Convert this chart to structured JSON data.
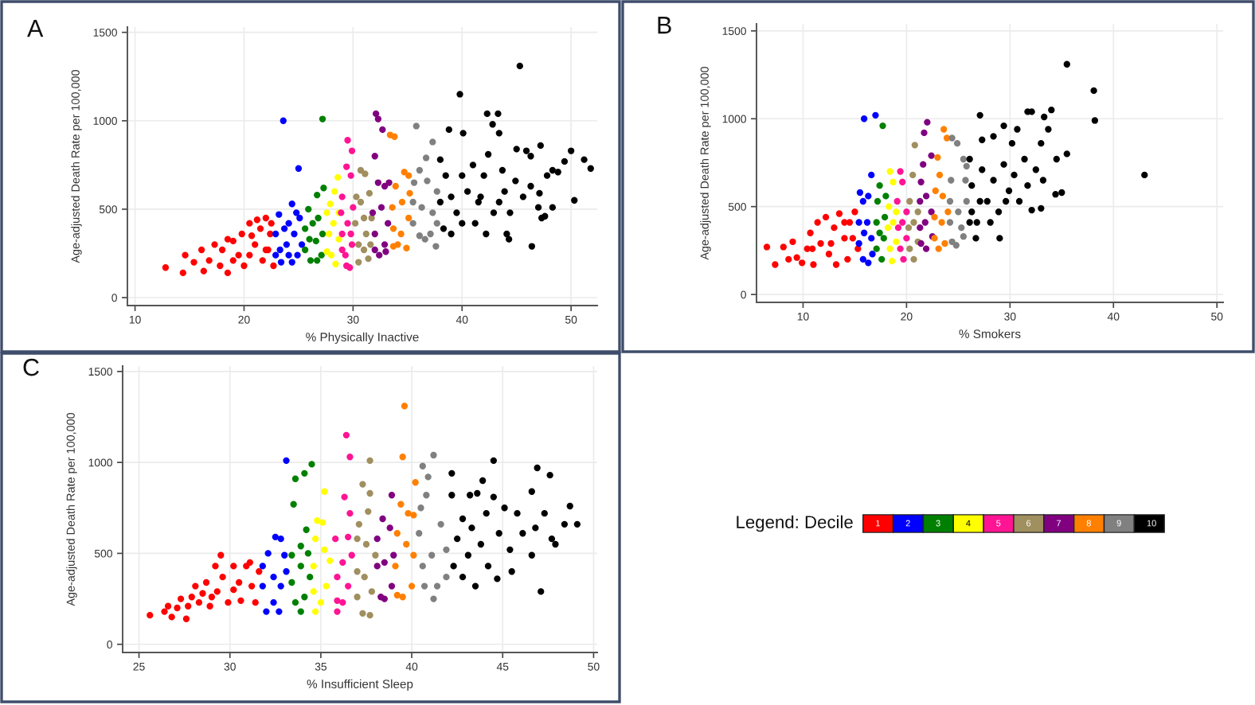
{
  "chart_data": [
    {
      "type": "scatter",
      "title": "A",
      "xlabel": "% Physically Inactive",
      "ylabel": "Age-adjusted Death Rate per 100,000",
      "xlim": [
        9.3,
        52.4
      ],
      "ylim": [
        -45,
        1530
      ],
      "xticks": [
        10,
        20,
        30,
        40,
        50
      ],
      "yticks": [
        0,
        500,
        1000,
        1500
      ],
      "grid": true,
      "marker": "circle",
      "series": [
        {
          "color": "#ff0000",
          "x": [
            12.8,
            14.4,
            14.6,
            15.4,
            16.1,
            16.3,
            16.8,
            17.3,
            17.8,
            18.0,
            18.5,
            19.0,
            19.5,
            19.8,
            20.0,
            20.5,
            21.0,
            21.5,
            21.7,
            22.0,
            22.2,
            22.4,
            22.7,
            20.5,
            21.2,
            19.0,
            20.7,
            22.0,
            18.5,
            22.5
          ],
          "values": [
            170,
            140,
            240,
            200,
            270,
            150,
            210,
            300,
            180,
            270,
            140,
            320,
            240,
            360,
            180,
            420,
            300,
            390,
            210,
            450,
            270,
            360,
            180,
            240,
            440,
            210,
            350,
            270,
            330,
            420
          ]
        },
        {
          "color": "#0000ff",
          "x": [
            23.6,
            25.0,
            24.4,
            23.2,
            22.9,
            22.9,
            23.4,
            23.9,
            24.1,
            24.6,
            24.9,
            25.1,
            24.4,
            23.7,
            25.3,
            24.1,
            23.3,
            24.8
          ],
          "values": [
            1000,
            730,
            530,
            470,
            360,
            240,
            200,
            300,
            420,
            360,
            240,
            450,
            200,
            390,
            300,
            240,
            270,
            480
          ]
        },
        {
          "color": "#008000",
          "x": [
            27.2,
            27.3,
            26.7,
            25.9,
            25.6,
            25.6,
            26.1,
            26.6,
            26.8,
            27.1,
            26.3,
            27.2,
            26.0,
            26.7
          ],
          "values": [
            1010,
            620,
            580,
            500,
            390,
            270,
            210,
            320,
            450,
            240,
            420,
            360,
            330,
            210
          ]
        },
        {
          "color": "#ffff00",
          "x": [
            27.6,
            27.8,
            27.6,
            28.0,
            28.3,
            28.6,
            28.4,
            28.2,
            28.7,
            27.9,
            28.7
          ],
          "values": [
            480,
            360,
            260,
            240,
            600,
            680,
            190,
            420,
            330,
            530,
            480
          ]
        },
        {
          "color": "#ff1493",
          "x": [
            29.5,
            29.9,
            29.4,
            29.8,
            29.0,
            28.9,
            29.0,
            29.0,
            29.4,
            29.7,
            29.5,
            29.9,
            30.0,
            29.3,
            29.8
          ],
          "values": [
            890,
            830,
            740,
            690,
            570,
            480,
            360,
            270,
            180,
            170,
            420,
            300,
            510,
            240,
            360
          ]
        },
        {
          "color": "#a08f5f",
          "x": [
            30.7,
            31.1,
            30.3,
            30.7,
            31.5,
            30.2,
            30.5,
            30.5,
            31.4,
            31.2,
            31.7,
            31.0,
            31.6,
            31.0
          ],
          "values": [
            720,
            700,
            570,
            540,
            590,
            420,
            300,
            200,
            220,
            360,
            450,
            270,
            300,
            450
          ]
        },
        {
          "color": "#800080",
          "x": [
            32.1,
            32.3,
            32.7,
            32.0,
            32.3,
            32.9,
            33.3,
            31.8,
            32.0,
            32.0,
            32.4,
            32.9,
            33.2,
            32.6,
            33.0
          ],
          "values": [
            1040,
            1010,
            950,
            800,
            650,
            630,
            650,
            480,
            360,
            270,
            240,
            300,
            420,
            510,
            260
          ]
        },
        {
          "color": "#ff8000",
          "x": [
            33.4,
            33.8,
            34.7,
            35.1,
            33.9,
            33.6,
            33.7,
            33.7,
            34.9,
            34.4,
            35.1,
            34.5,
            34.1,
            35.2
          ],
          "values": [
            920,
            910,
            710,
            690,
            630,
            510,
            390,
            290,
            280,
            360,
            450,
            540,
            300,
            590
          ]
        },
        {
          "color": "#808080",
          "x": [
            35.8,
            37.3,
            36.7,
            36.1,
            35.6,
            35.5,
            35.5,
            36.1,
            36.6,
            37.1,
            37.6,
            37.3,
            37.7,
            36.8,
            36.3,
            37.7
          ],
          "values": [
            970,
            880,
            790,
            720,
            650,
            540,
            420,
            350,
            330,
            360,
            290,
            480,
            600,
            660,
            510,
            420
          ]
        },
        {
          "color": "#000000",
          "x": [
            45.3,
            39.8,
            42.3,
            43.3,
            42.8,
            38.8,
            40.1,
            43.4,
            45.0,
            45.9,
            47.2,
            50.0,
            51.2,
            51.8,
            50.3,
            46.4,
            44.3,
            42.2,
            47.6,
            47.0,
            48.3,
            48.8,
            47.8,
            46.3,
            38.0,
            38.5,
            38.0,
            38.3,
            39.0,
            39.5,
            40.0,
            40.5,
            41.0,
            41.2,
            41.7,
            42.0,
            42.4,
            42.9,
            43.7,
            43.9,
            44.4,
            44.9,
            45.6,
            46.3,
            47.1,
            39.0,
            40.0,
            41.5,
            43.4,
            44.1,
            48.3,
            49.4,
            47.3
          ],
          "values": [
            1310,
            1150,
            1040,
            1040,
            980,
            950,
            930,
            930,
            840,
            830,
            860,
            830,
            780,
            730,
            550,
            290,
            330,
            360,
            460,
            510,
            720,
            710,
            690,
            800,
            780,
            690,
            540,
            390,
            360,
            480,
            690,
            600,
            750,
            420,
            570,
            690,
            810,
            480,
            720,
            600,
            480,
            660,
            570,
            630,
            590,
            570,
            420,
            540,
            540,
            360,
            510,
            770,
            450
          ]
        }
      ]
    },
    {
      "type": "scatter",
      "title": "B",
      "xlabel": "% Smokers",
      "ylabel": "Age-adjusted Death Rate per 100,000",
      "xlim": [
        5.5,
        50.6
      ],
      "ylim": [
        -45,
        1540
      ],
      "xticks": [
        10,
        20,
        30,
        40,
        50
      ],
      "yticks": [
        0,
        500,
        1000,
        1500
      ],
      "grid": true,
      "marker": "circle",
      "series": [
        {
          "color": "#ff0000",
          "x": [
            6.5,
            7.3,
            8.1,
            8.6,
            9.0,
            9.4,
            9.9,
            10.4,
            10.7,
            11.0,
            11.4,
            11.7,
            12.2,
            12.5,
            13.0,
            13.2,
            13.5,
            14.0,
            14.3,
            14.5,
            15.0,
            15.3,
            14.8,
            12.7,
            14.0,
            10.9
          ],
          "values": [
            270,
            170,
            270,
            200,
            300,
            210,
            180,
            260,
            350,
            170,
            410,
            290,
            440,
            230,
            380,
            170,
            460,
            320,
            200,
            410,
            470,
            260,
            320,
            290,
            410,
            260
          ]
        },
        {
          "color": "#0000ff",
          "x": [
            15.9,
            17.0,
            16.6,
            15.5,
            15.8,
            16.3,
            15.4,
            15.4,
            15.8,
            16.3,
            16.6,
            16.2,
            16.7,
            15.9
          ],
          "values": [
            1000,
            1020,
            680,
            580,
            530,
            560,
            410,
            290,
            200,
            180,
            320,
            410,
            230,
            350
          ]
        },
        {
          "color": "#008000",
          "x": [
            17.7,
            17.4,
            17.2,
            17.1,
            17.1,
            17.6,
            17.8,
            17.9,
            17.4,
            18.0
          ],
          "values": [
            960,
            620,
            530,
            410,
            260,
            200,
            320,
            440,
            350,
            560
          ]
        },
        {
          "color": "#ffff00",
          "x": [
            18.4,
            18.7,
            18.3,
            18.2,
            18.4,
            18.6,
            19.0,
            19.0,
            18.7
          ],
          "values": [
            700,
            640,
            500,
            380,
            260,
            190,
            300,
            470,
            410
          ]
        },
        {
          "color": "#ff1493",
          "x": [
            19.4,
            19.6,
            19.1,
            19.2,
            19.4,
            19.7,
            20.0,
            20.0,
            19.6
          ],
          "values": [
            700,
            640,
            530,
            380,
            260,
            200,
            320,
            470,
            410
          ]
        },
        {
          "color": "#a08f5f",
          "x": [
            20.8,
            20.6,
            20.3,
            20.2,
            20.3,
            20.7,
            21.1,
            21.1,
            20.7
          ],
          "values": [
            850,
            680,
            530,
            380,
            260,
            200,
            300,
            470,
            410
          ]
        },
        {
          "color": "#800080",
          "x": [
            22.0,
            21.7,
            22.4,
            21.6,
            21.4,
            21.3,
            21.3,
            21.4,
            21.9,
            22.5,
            22.4,
            21.9,
            21.8
          ],
          "values": [
            980,
            920,
            790,
            740,
            640,
            530,
            380,
            290,
            260,
            330,
            470,
            560,
            410
          ]
        },
        {
          "color": "#ff8000",
          "x": [
            23.6,
            23.9,
            23.0,
            23.2,
            22.8,
            22.7,
            22.7,
            23.1,
            23.7,
            24.0,
            23.5,
            23.4
          ],
          "values": [
            940,
            890,
            780,
            680,
            590,
            440,
            320,
            260,
            290,
            470,
            560,
            410
          ]
        },
        {
          "color": "#808080",
          "x": [
            24.4,
            24.9,
            25.5,
            25.8,
            24.3,
            24.2,
            24.2,
            24.4,
            24.8,
            25.3,
            25.8,
            25.7,
            25.0,
            25.5
          ],
          "values": [
            890,
            860,
            770,
            730,
            650,
            530,
            410,
            300,
            280,
            380,
            530,
            650,
            470,
            330
          ]
        },
        {
          "color": "#000000",
          "x": [
            35.5,
            38.1,
            38.2,
            43.0,
            35.5,
            31.7,
            32.1,
            33.3,
            34.0,
            27.1,
            29.4,
            30.7,
            28.4,
            33.7,
            27.3,
            30.2,
            33.0,
            34.5,
            35.0,
            34.4,
            32.1,
            33.0,
            26.7,
            29.0,
            26.1,
            26.3,
            26.3,
            26.8,
            27.3,
            27.8,
            28.4,
            28.9,
            29.4,
            29.9,
            30.4,
            30.9,
            31.4,
            31.7,
            32.5,
            33.2,
            27.1,
            28.1,
            29.6,
            26.1
          ],
          "values": [
            1310,
            1160,
            990,
            680,
            800,
            1040,
            1040,
            1010,
            1050,
            1020,
            960,
            940,
            900,
            940,
            880,
            860,
            860,
            770,
            580,
            570,
            480,
            490,
            320,
            320,
            770,
            620,
            470,
            410,
            710,
            530,
            650,
            470,
            740,
            590,
            680,
            530,
            770,
            620,
            710,
            650,
            530,
            410,
            530,
            410
          ]
        }
      ]
    },
    {
      "type": "scatter",
      "title": "C",
      "xlabel": "% Insufficient Sleep",
      "ylabel": "Age-adjusted Death Rate per 100,000",
      "xlim": [
        24.1,
        50.2
      ],
      "ylim": [
        -45,
        1530
      ],
      "xticks": [
        25,
        30,
        35,
        40,
        45,
        50
      ],
      "yticks": [
        0,
        500,
        1000,
        1500
      ],
      "grid": true,
      "marker": "circle",
      "legend": "right",
      "legend_title": "Legend: Decile",
      "series": [
        {
          "name": "1",
          "color": "#ff0000",
          "x": [
            25.6,
            26.4,
            26.6,
            26.8,
            27.1,
            27.3,
            27.6,
            27.7,
            27.9,
            28.1,
            28.3,
            28.5,
            28.7,
            28.9,
            29.2,
            29.3,
            29.5,
            29.6,
            29.9,
            30.2,
            30.5,
            30.6,
            30.9,
            31.2,
            31.4,
            31.6,
            31.1,
            29.0,
            30.2
          ],
          "values": [
            160,
            180,
            210,
            150,
            200,
            250,
            140,
            210,
            260,
            320,
            230,
            280,
            340,
            210,
            430,
            290,
            490,
            370,
            230,
            430,
            340,
            240,
            430,
            320,
            230,
            400,
            450,
            260,
            300
          ]
        },
        {
          "name": "2",
          "color": "#0000ff",
          "x": [
            33.1,
            32.5,
            32.8,
            32.1,
            31.8,
            31.8,
            32.0,
            32.4,
            32.7,
            32.8,
            33.1,
            33.0,
            32.4
          ],
          "values": [
            1010,
            590,
            580,
            500,
            430,
            320,
            180,
            230,
            180,
            320,
            400,
            490,
            370
          ]
        },
        {
          "name": "3",
          "color": "#008000",
          "x": [
            33.6,
            34.1,
            34.5,
            33.5,
            34.2,
            33.4,
            33.4,
            33.6,
            33.9,
            34.1,
            34.4,
            34.3,
            33.9,
            33.9
          ],
          "values": [
            910,
            940,
            990,
            770,
            630,
            490,
            340,
            230,
            180,
            260,
            370,
            500,
            430,
            540
          ]
        },
        {
          "name": "4",
          "color": "#ffff00",
          "x": [
            35.2,
            34.8,
            35.1,
            34.7,
            34.6,
            34.6,
            34.7,
            35.0,
            35.3,
            35.5,
            35.2
          ],
          "values": [
            840,
            680,
            670,
            580,
            430,
            290,
            180,
            230,
            320,
            460,
            520
          ]
        },
        {
          "name": "5",
          "color": "#ff1493",
          "x": [
            36.4,
            36.6,
            36.3,
            36.6,
            35.9,
            35.8,
            35.9,
            35.9,
            36.2,
            36.5,
            36.7,
            36.5,
            36.2
          ],
          "values": [
            1150,
            1030,
            810,
            720,
            180,
            580,
            370,
            240,
            230,
            320,
            490,
            590,
            450
          ]
        },
        {
          "name": "6",
          "color": "#a08f5f",
          "x": [
            37.7,
            37.3,
            37.7,
            37.6,
            37.0,
            37.1,
            37.0,
            37.0,
            37.3,
            37.7,
            37.8,
            38.0,
            37.5,
            37.4
          ],
          "values": [
            1010,
            880,
            830,
            730,
            580,
            660,
            400,
            260,
            170,
            160,
            290,
            490,
            550,
            370
          ]
        },
        {
          "name": "7",
          "color": "#800080",
          "x": [
            38.9,
            38.4,
            38.8,
            38.1,
            38.1,
            38.3,
            38.5,
            38.9,
            39.0,
            38.5
          ],
          "values": [
            820,
            690,
            640,
            580,
            430,
            260,
            250,
            320,
            490,
            450
          ]
        },
        {
          "name": "8",
          "color": "#ff8000",
          "x": [
            39.6,
            39.5,
            40.2,
            39.4,
            39.8,
            40.1,
            39.2,
            39.1,
            39.2,
            39.5,
            40.0,
            40.1,
            39.7
          ],
          "values": [
            1310,
            1030,
            890,
            770,
            720,
            710,
            610,
            430,
            270,
            260,
            320,
            490,
            550
          ]
        },
        {
          "name": "9",
          "color": "#808080",
          "x": [
            41.2,
            40.6,
            40.9,
            40.8,
            40.5,
            40.4,
            40.6,
            40.7,
            41.2,
            41.4,
            41.9,
            41.9,
            41.6,
            41.1
          ],
          "values": [
            1040,
            980,
            920,
            820,
            750,
            610,
            430,
            320,
            250,
            320,
            370,
            520,
            660,
            490
          ]
        },
        {
          "name": "10",
          "color": "#000000",
          "x": [
            42.2,
            44.5,
            43.9,
            43.6,
            43.2,
            42.2,
            46.9,
            47.6,
            48.7,
            49.1,
            48.4,
            47.1,
            43.5,
            44.7,
            42.8,
            42.5,
            42.3,
            42.8,
            43.1,
            43.3,
            43.8,
            44.1,
            44.2,
            44.8,
            45.1,
            45.4,
            45.8,
            46.1,
            46.6,
            46.8,
            47.3,
            47.7,
            47.9,
            46.6,
            44.5,
            45.5
          ],
          "values": [
            940,
            1010,
            900,
            830,
            820,
            820,
            970,
            930,
            760,
            660,
            660,
            290,
            320,
            360,
            690,
            580,
            430,
            370,
            490,
            640,
            550,
            720,
            430,
            610,
            750,
            520,
            720,
            610,
            840,
            640,
            720,
            580,
            550,
            490,
            810,
            400
          ]
        }
      ]
    }
  ]
}
